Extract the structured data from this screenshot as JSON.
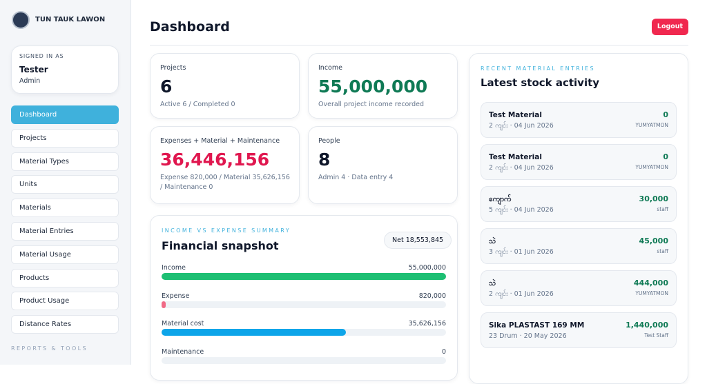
{
  "sidebar": {
    "brand": "TUN TAUK LAWON",
    "signed_in_label": "SIGNED IN AS",
    "user_name": "Tester",
    "user_role": "Admin",
    "nav": [
      "Dashboard",
      "Projects",
      "Material Types",
      "Units",
      "Materials",
      "Material Entries",
      "Material Usage",
      "Products",
      "Product Usage",
      "Distance Rates"
    ],
    "section_label": "REPORTS & TOOLS"
  },
  "header": {
    "title": "Dashboard",
    "logout": "Logout"
  },
  "stats": [
    {
      "label": "Projects",
      "value": "6",
      "note": "Active 6 / Completed 0"
    },
    {
      "label": "Income",
      "value": "55,000,000",
      "note": "Overall project income recorded"
    },
    {
      "label": "Expenses + Material + Maintenance",
      "value": "36,446,156",
      "note": "Expense 820,000 / Material 35,626,156 / Maintenance 0"
    },
    {
      "label": "People",
      "value": "8",
      "note": "Admin 4 · Data entry 4"
    }
  ],
  "snapshot": {
    "eyebrow": "INCOME VS EXPENSE SUMMARY",
    "title": "Financial snapshot",
    "net": "Net 18,553,845",
    "rows": [
      {
        "label": "Income",
        "value": 55000000,
        "value_label": "55,000,000",
        "color": "#1dbf73"
      },
      {
        "label": "Expense",
        "value": 820000,
        "value_label": "820,000",
        "color": "#f06a86"
      },
      {
        "label": "Material cost",
        "value": 35626156,
        "value_label": "35,626,156",
        "color": "#0ea5e9"
      },
      {
        "label": "Maintenance",
        "value": 0,
        "value_label": "0",
        "color": "#94a3b8"
      }
    ]
  },
  "recent": {
    "eyebrow": "RECENT MATERIAL ENTRIES",
    "title": "Latest stock activity",
    "entries": [
      {
        "name": "Test Material",
        "detail": "2 ကျင်း · 04 Jun 2026",
        "amount": "0",
        "by": "YUMYATMON"
      },
      {
        "name": "Test Material",
        "detail": "2 ကျင်း · 04 Jun 2026",
        "amount": "0",
        "by": "YUMYATMON"
      },
      {
        "name": "ကျောက်",
        "detail": "5 ကျင်း · 04 Jun 2026",
        "amount": "30,000",
        "by": "staff"
      },
      {
        "name": "သဲ",
        "detail": "3 ကျင်း · 01 Jun 2026",
        "amount": "45,000",
        "by": "staff"
      },
      {
        "name": "သဲ",
        "detail": "2 ကျင်း · 01 Jun 2026",
        "amount": "444,000",
        "by": "YUMYATMON"
      },
      {
        "name": "Sika PLASTAST 169 MM",
        "detail": "23 Drum · 20 May 2026",
        "amount": "1,440,000",
        "by": "Test Staff"
      }
    ]
  }
}
